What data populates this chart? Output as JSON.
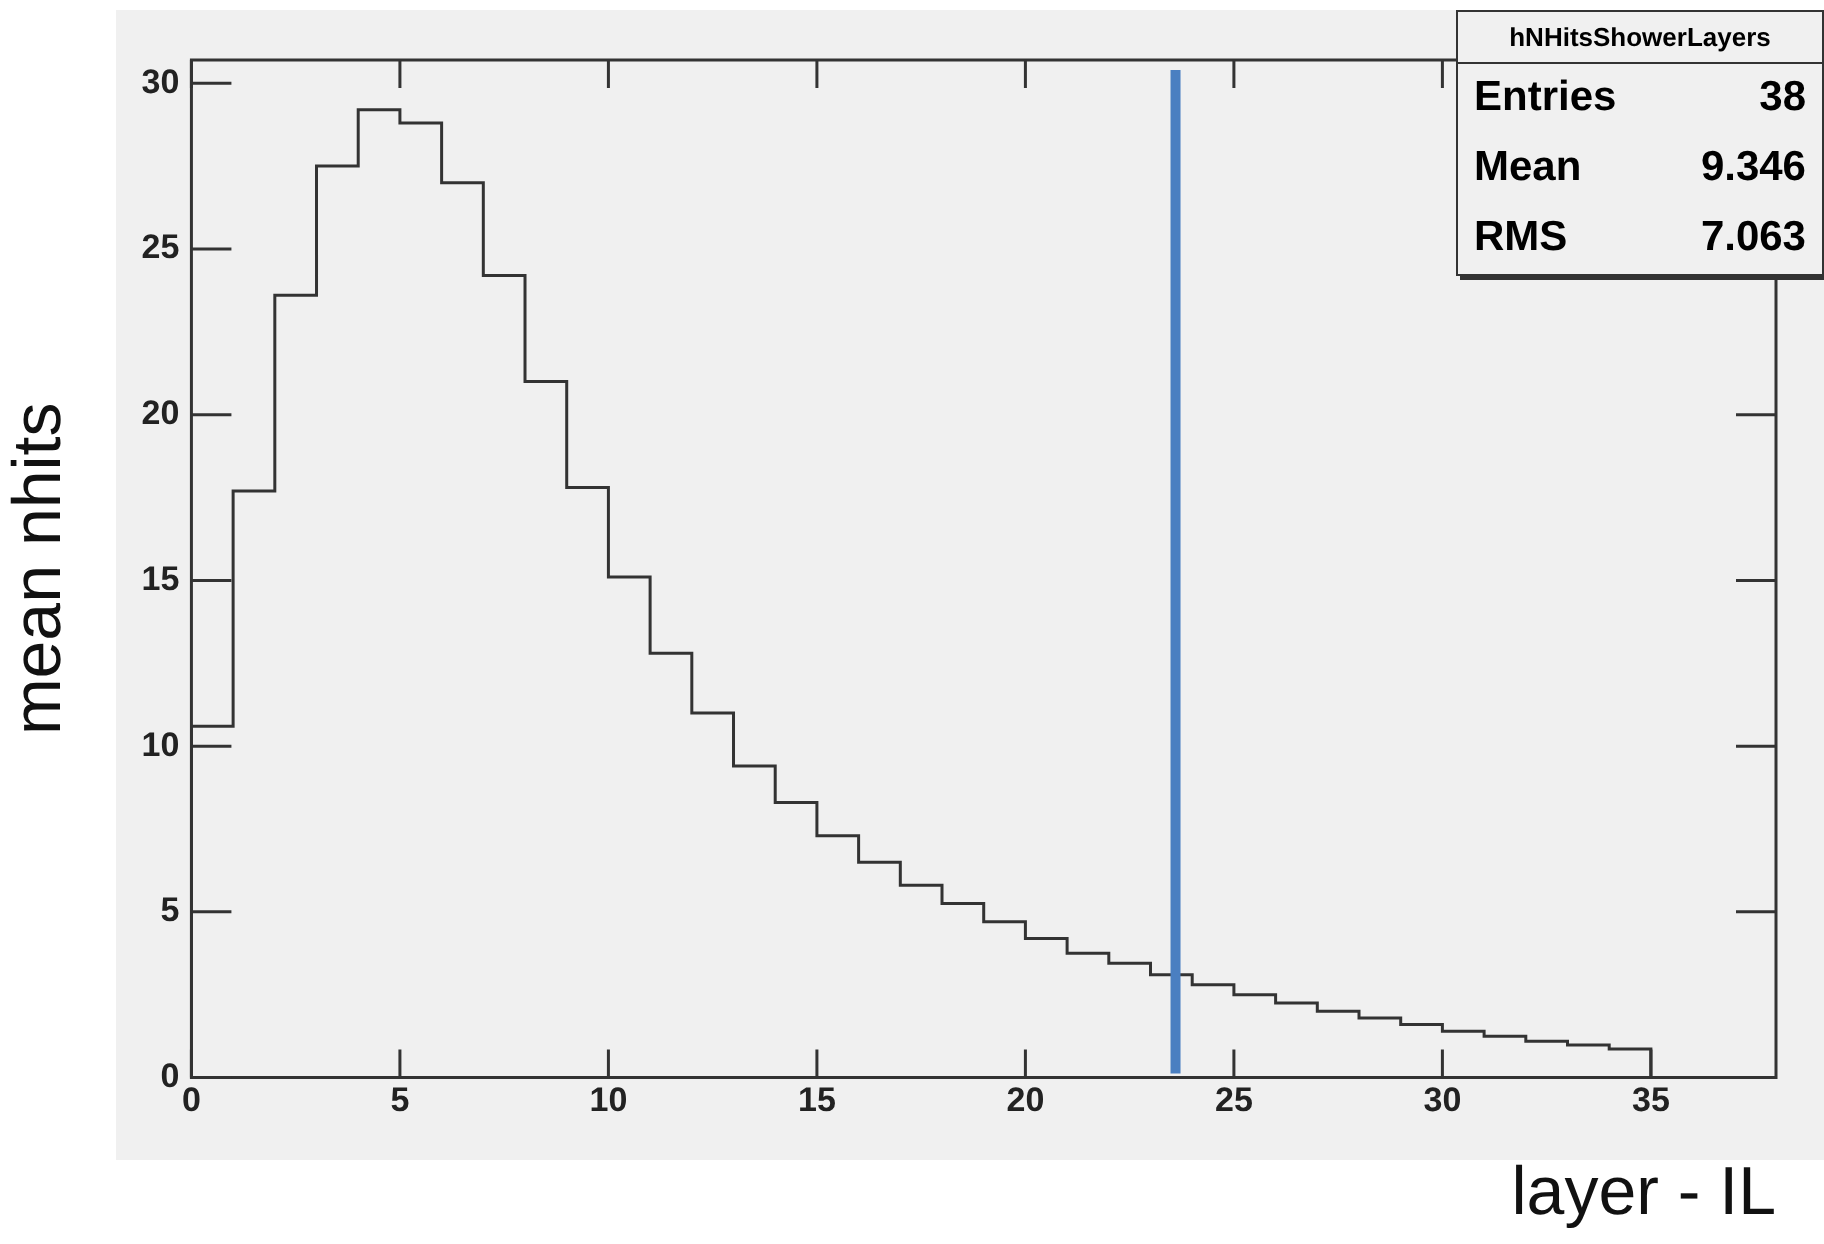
{
  "chart_data": {
    "type": "histogram",
    "xlabel": "layer - IL",
    "ylabel": "mean nhits",
    "bins": [
      0,
      1,
      2,
      3,
      4,
      5,
      6,
      7,
      8,
      9,
      10,
      11,
      12,
      13,
      14,
      15,
      16,
      17,
      18,
      19,
      20,
      21,
      22,
      23,
      24,
      25,
      26,
      27,
      28,
      29,
      30,
      31,
      32,
      33,
      34,
      35
    ],
    "values": [
      10.6,
      17.7,
      23.6,
      27.5,
      29.2,
      28.8,
      27.0,
      24.2,
      21.0,
      17.8,
      15.1,
      12.8,
      11.0,
      9.4,
      8.3,
      7.3,
      6.5,
      5.8,
      5.25,
      4.7,
      4.2,
      3.75,
      3.45,
      3.1,
      2.8,
      2.5,
      2.25,
      2.0,
      1.8,
      1.6,
      1.4,
      1.25,
      1.1,
      0.98,
      0.86
    ],
    "color": "#333333",
    "xlim": [
      0,
      38
    ],
    "ylim": [
      0,
      30.7
    ],
    "xticks": [
      0,
      5,
      10,
      15,
      20,
      25,
      30,
      35
    ],
    "yticks": [
      0,
      5,
      10,
      15,
      20,
      25,
      30
    ],
    "ref_lines": [
      {
        "axis": "x",
        "value": 23.6,
        "color": "#4a7fc1"
      }
    ],
    "annotations": [
      "hNHitsShowerLayers",
      "Entries",
      "38",
      "Mean",
      "9.346",
      "RMS",
      "7.063"
    ],
    "grid": false,
    "legend": false
  }
}
